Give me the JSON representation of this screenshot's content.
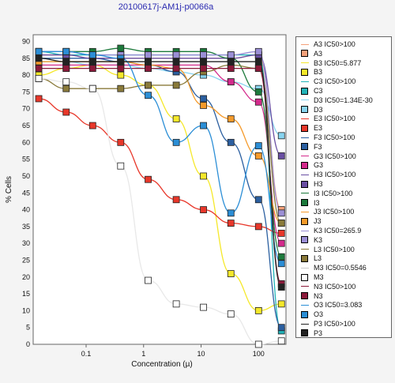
{
  "chart_data": {
    "type": "scatter",
    "title": "20100617j-AM1j-p0066a",
    "xlabel": "Concentration (µ)",
    "ylabel": "% Cells",
    "xscale": "log",
    "xlim": [
      0.012,
      300
    ],
    "ylim": [
      0,
      92
    ],
    "x_ticks": [
      0.1,
      1,
      10,
      100
    ],
    "x_tick_labels": [
      "0.1",
      "1",
      "10",
      "100"
    ],
    "y_ticks": [
      0,
      5,
      10,
      15,
      20,
      25,
      30,
      35,
      40,
      45,
      50,
      55,
      60,
      65,
      70,
      75,
      80,
      85,
      90
    ],
    "y_tick_labels": [
      "0",
      "5",
      "10",
      "15",
      "20",
      "25",
      "30",
      "35",
      "40",
      "45",
      "50",
      "55",
      "60",
      "65",
      "70",
      "75",
      "80",
      "85",
      "90"
    ],
    "grid": true,
    "legend_position": "right",
    "x_points": [
      0.015,
      0.045,
      0.13,
      0.4,
      1.2,
      3.7,
      11,
      33,
      100,
      250
    ],
    "series": [
      {
        "name": "A3",
        "fit_label": "A3 IC50>100",
        "color": "#f4a07a",
        "values": [
          86,
          86,
          85,
          85,
          85,
          85,
          85,
          85,
          86,
          40
        ]
      },
      {
        "name": "B3",
        "fit_label": "B3 IC50=5.877",
        "color": "#f5e82a",
        "values": [
          80,
          82,
          83,
          80,
          77,
          67,
          50,
          21,
          10,
          12
        ]
      },
      {
        "name": "C3",
        "fit_label": "C3 IC50>100",
        "color": "#21b3b8",
        "values": [
          87,
          86,
          86,
          86,
          86,
          86,
          86,
          86,
          86,
          4
        ]
      },
      {
        "name": "D3",
        "fit_label": "D3 IC50=1.34E-30",
        "color": "#88d4f0",
        "values": [
          84,
          84,
          83,
          83,
          82,
          81,
          80,
          78,
          76,
          62
        ]
      },
      {
        "name": "E3",
        "fit_label": "E3 IC50>100",
        "color": "#e8372a",
        "values": [
          73,
          69,
          65,
          60,
          49,
          43,
          40,
          36,
          35,
          33
        ]
      },
      {
        "name": "F3",
        "fit_label": "F3 IC50>100",
        "color": "#2b5fa0",
        "values": [
          85,
          85,
          85,
          84,
          83,
          81,
          73,
          60,
          43,
          5
        ]
      },
      {
        "name": "G3",
        "fit_label": "G3 IC50>100",
        "color": "#d42a8c",
        "values": [
          83,
          83,
          83,
          83,
          83,
          83,
          83,
          78,
          72,
          30
        ]
      },
      {
        "name": "H3",
        "fit_label": "H3 IC50>100",
        "color": "#6a4fa3",
        "values": [
          86,
          86,
          85,
          85,
          85,
          85,
          85,
          85,
          86,
          56
        ]
      },
      {
        "name": "I3",
        "fit_label": "I3 IC50>100",
        "color": "#1d7a3c",
        "values": [
          87,
          87,
          87,
          88,
          87,
          87,
          87,
          85,
          75,
          26
        ]
      },
      {
        "name": "J3",
        "fit_label": "J3 IC50>100",
        "color": "#f59a2a",
        "values": [
          84,
          84,
          84,
          84,
          83,
          82,
          71,
          67,
          56,
          36
        ]
      },
      {
        "name": "K3",
        "fit_label": "K3 IC50=265.9",
        "color": "#9b8fd6",
        "values": [
          87,
          87,
          86,
          86,
          86,
          86,
          86,
          86,
          87,
          39
        ]
      },
      {
        "name": "L3",
        "fit_label": "L3 IC50>100",
        "color": "#8a7a3a",
        "values": [
          79,
          76,
          76,
          76,
          77,
          77,
          81,
          83,
          82,
          36
        ]
      },
      {
        "name": "M3",
        "fit_label": "M3 IC50=0.5546",
        "color": "#ffffff",
        "values": [
          79,
          78,
          76,
          53,
          19,
          12,
          11,
          9,
          0,
          1
        ]
      },
      {
        "name": "N3",
        "fit_label": "N3 IC50>100",
        "color": "#8b1a3a",
        "values": [
          82,
          82,
          82,
          82,
          82,
          82,
          82,
          82,
          82,
          18
        ]
      },
      {
        "name": "O3",
        "fit_label": "O3 IC50=3.083",
        "color": "#2b8ed6",
        "values": [
          87,
          87,
          86,
          85,
          74,
          60,
          65,
          39,
          59,
          24
        ]
      },
      {
        "name": "P3",
        "fit_label": "P3 IC50>100",
        "color": "#222222",
        "values": [
          85,
          84,
          84,
          84,
          84,
          84,
          84,
          84,
          84,
          17
        ]
      }
    ]
  }
}
